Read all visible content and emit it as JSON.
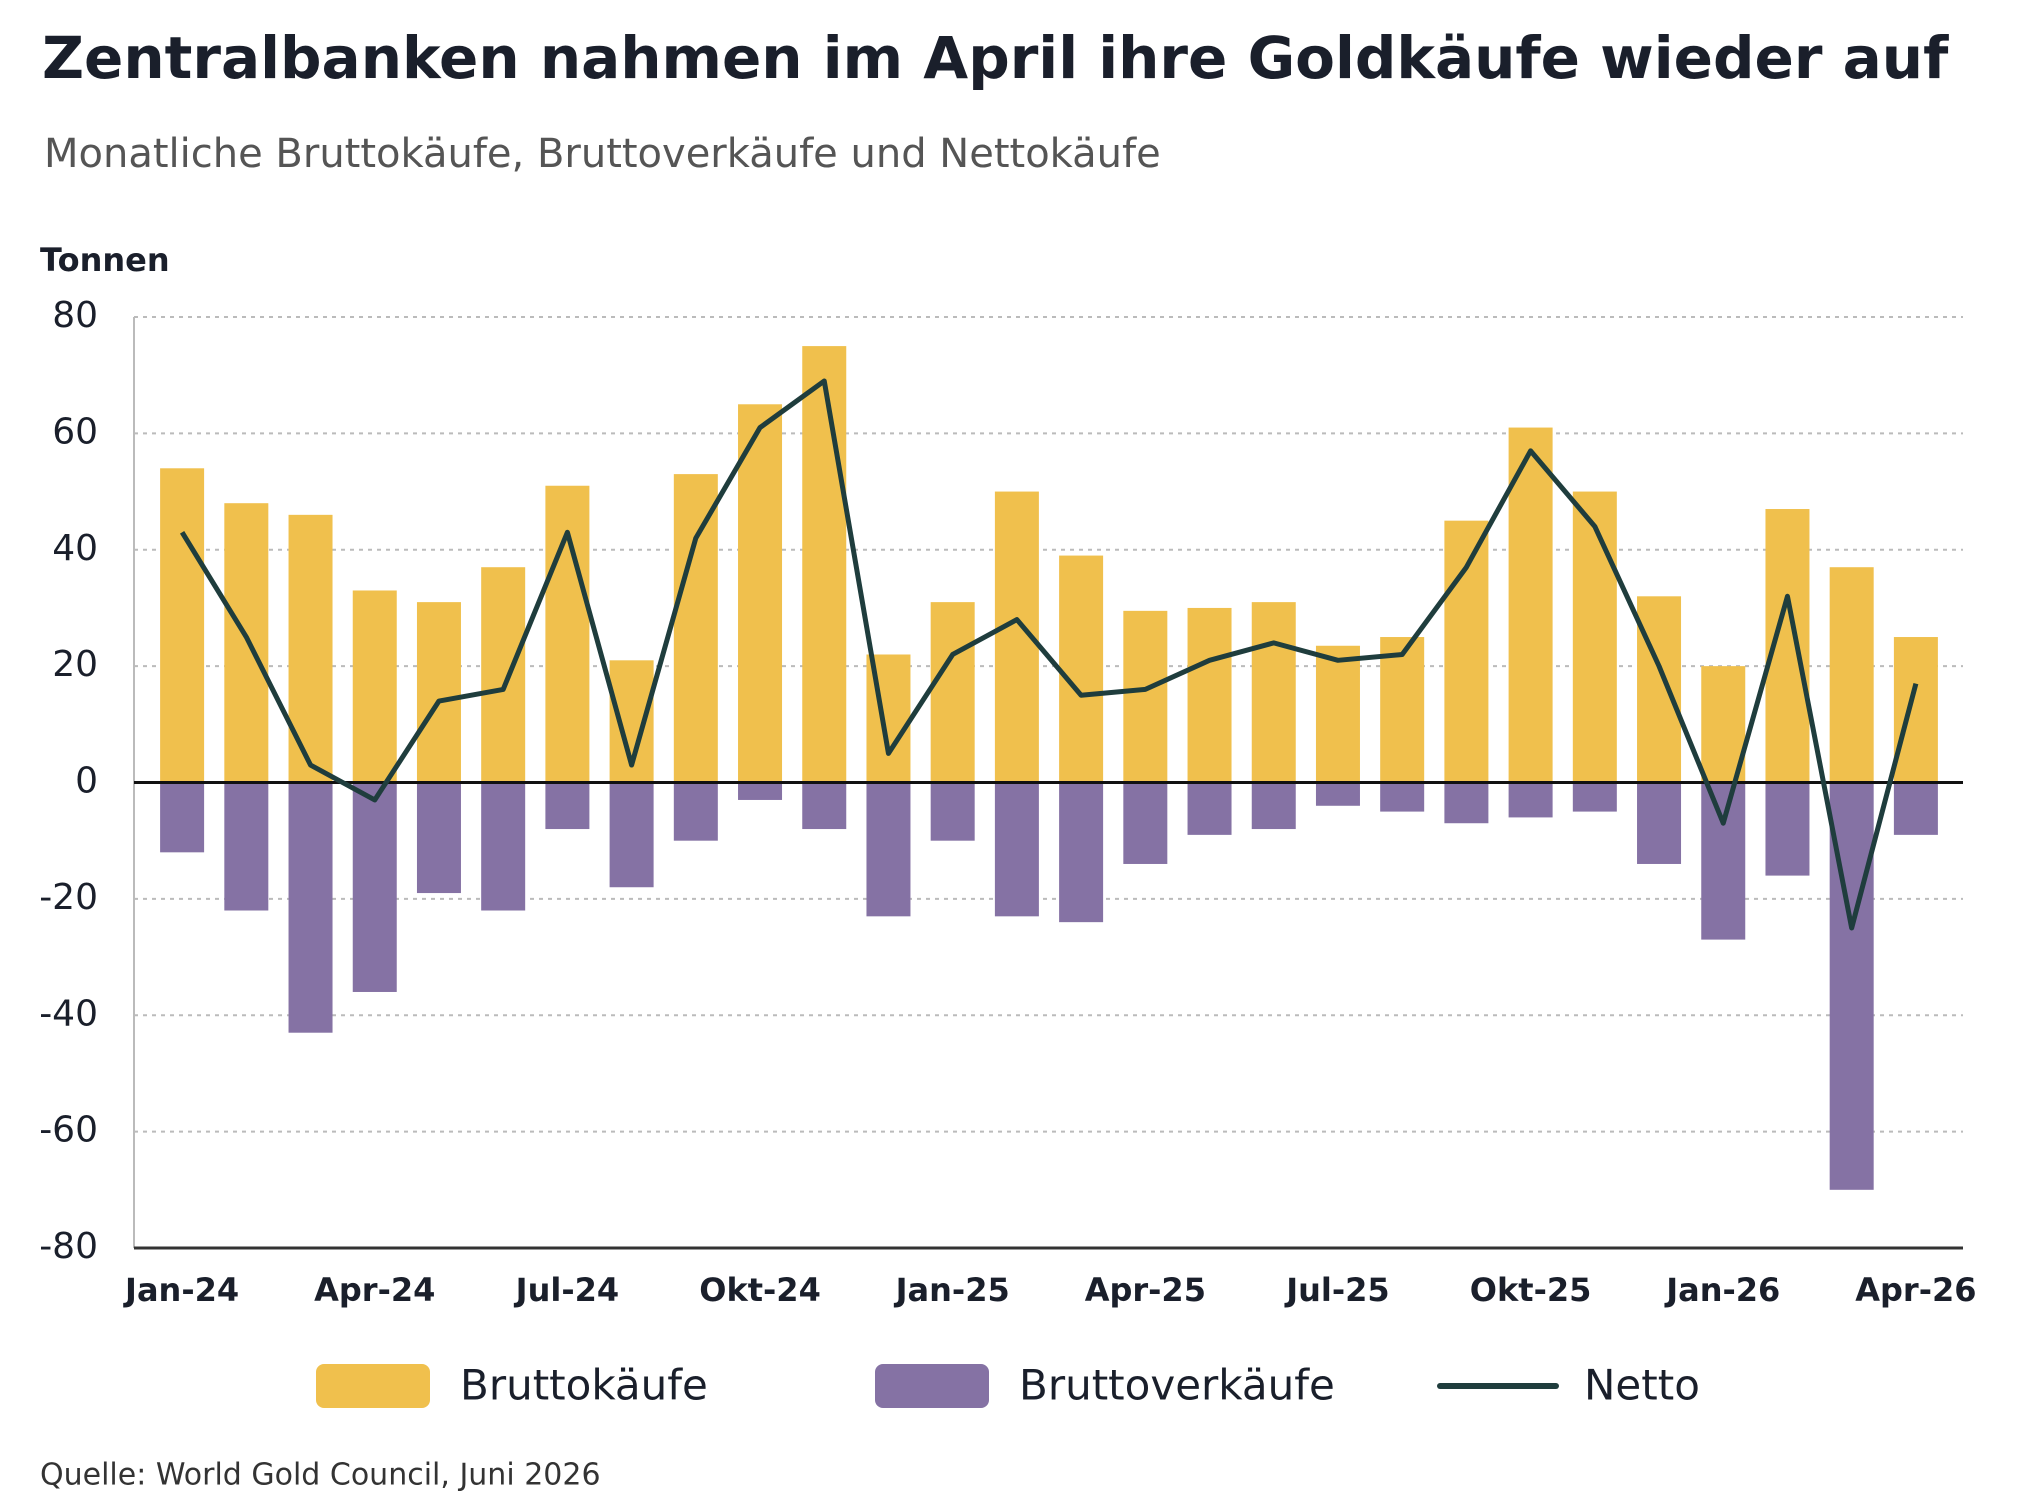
{
  "chart_data": {
    "type": "bar",
    "title": "Zentralbanken nahmen im April ihre Goldkäufe wieder auf",
    "subtitle": "Monatliche Bruttokäufe, Bruttoverkäufe und Nettokäufe",
    "y_label": "Tonnen",
    "source": "Quelle: World Gold Council, Juni 2026",
    "categories": [
      "Jan-24",
      null,
      null,
      "Apr-24",
      null,
      null,
      "Jul-24",
      null,
      null,
      "Okt-24",
      null,
      null,
      "Jan-25",
      null,
      null,
      "Apr-25",
      null,
      null,
      "Jul-25",
      null,
      null,
      "Okt-25",
      null,
      null,
      "Jan-26",
      null,
      null,
      "Apr-26"
    ],
    "series": [
      {
        "name": "Bruttokäufe",
        "type": "bar",
        "color": "#f0c04d",
        "values": [
          54,
          48,
          46,
          33,
          31,
          37,
          51,
          21,
          53,
          65,
          75,
          22,
          31,
          50,
          39,
          29.5,
          30,
          31,
          23.5,
          25,
          45,
          61,
          50,
          32,
          20,
          47,
          37,
          25
        ]
      },
      {
        "name": "Bruttoverkäufe",
        "type": "bar",
        "color": "#8572a4",
        "values": [
          -12,
          -22,
          -43,
          -36,
          -19,
          -22,
          -8,
          -18,
          -10,
          -3,
          -8,
          -23,
          -10,
          -23,
          -24,
          -14,
          -9,
          -8,
          -4,
          -5,
          -7,
          -6,
          -5,
          -14,
          -27,
          -16,
          -70,
          -9
        ]
      },
      {
        "name": "Netto",
        "type": "line",
        "color": "#1f3d3d",
        "values": [
          43,
          25,
          3,
          -3,
          14,
          16,
          43,
          3,
          42,
          61,
          69,
          5,
          22,
          28,
          15,
          16,
          21,
          24,
          21,
          22,
          37,
          57,
          44,
          20,
          -7,
          32,
          -25,
          17
        ]
      }
    ],
    "ylim": [
      -80,
      80
    ],
    "yticks": [
      -80,
      -60,
      -40,
      -20,
      0,
      20,
      40,
      60,
      80
    ],
    "grid": true
  }
}
